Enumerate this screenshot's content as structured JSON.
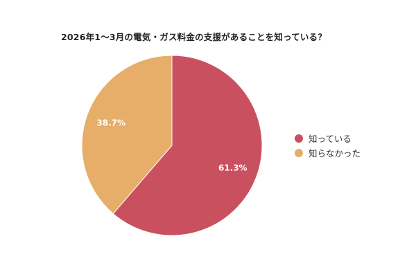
{
  "title": "2026年1～3月の電気・ガス料金の支援があることを知っている？",
  "chart_data": {
    "type": "pie",
    "title": "2026年1～3月の電気・ガス料金の支援があることを知っている？",
    "slices": [
      {
        "label": "知っている",
        "value": 61.3,
        "display": "61.3%",
        "color": "#c9505f"
      },
      {
        "label": "知らなかった",
        "value": 38.7,
        "display": "38.7%",
        "color": "#e6ae69"
      }
    ],
    "legend_position": "right"
  }
}
